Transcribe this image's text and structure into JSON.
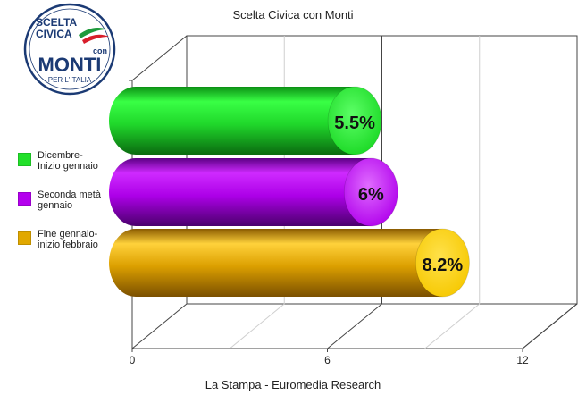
{
  "chart_data": {
    "type": "bar",
    "orientation": "horizontal",
    "style": "3d-cylinder",
    "title": "Scelta Civica con Monti",
    "source": "La Stampa - Euromedia Research",
    "categories": [
      "Dicembre-\nInizio gennaio",
      "Seconda metà\ngennaio",
      "Fine gennaio-\ninizio febbraio"
    ],
    "values": [
      5.5,
      6,
      8.2
    ],
    "value_labels": [
      "5.5%",
      "6%",
      "8.2%"
    ],
    "x_ticks": [
      "0",
      "6",
      "12"
    ],
    "xlim": [
      0,
      12
    ],
    "grid": true,
    "legend_position": "left",
    "colors": [
      "#22e02a",
      "#b400ee",
      "#e1a800"
    ]
  },
  "logo": {
    "line1": "SCELTA",
    "line2": "CIVICA",
    "con": "con",
    "name": "MONTI",
    "subtitle": "PER L'ITALIA",
    "colors": {
      "navy": "#1b3a74",
      "green": "#1e9a3c",
      "red": "#d81e2b"
    }
  }
}
